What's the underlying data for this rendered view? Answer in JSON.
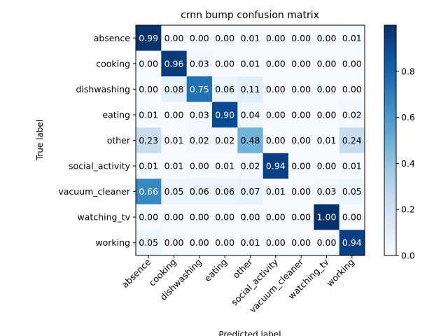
{
  "chart_data": {
    "type": "heatmap",
    "title": "crnn bump confusion matrix",
    "xlabel": "Predicted label",
    "ylabel": "True label",
    "labels": [
      "absence",
      "cooking",
      "dishwashing",
      "eating",
      "other",
      "social_activity",
      "vacuum_cleaner",
      "watching_tv",
      "working"
    ],
    "values": [
      [
        0.99,
        0.0,
        0.0,
        0.0,
        0.01,
        0.0,
        0.0,
        0.0,
        0.01
      ],
      [
        0.0,
        0.96,
        0.03,
        0.0,
        0.01,
        0.0,
        0.0,
        0.0,
        0.0
      ],
      [
        0.0,
        0.08,
        0.75,
        0.06,
        0.11,
        0.0,
        0.0,
        0.0,
        0.0
      ],
      [
        0.01,
        0.0,
        0.03,
        0.9,
        0.04,
        0.0,
        0.0,
        0.0,
        0.02
      ],
      [
        0.23,
        0.01,
        0.02,
        0.02,
        0.48,
        0.0,
        0.0,
        0.01,
        0.24
      ],
      [
        0.01,
        0.01,
        0.0,
        0.01,
        0.02,
        0.94,
        0.0,
        0.0,
        0.01
      ],
      [
        0.66,
        0.05,
        0.06,
        0.06,
        0.07,
        0.01,
        0.0,
        0.03,
        0.05
      ],
      [
        0.0,
        0.0,
        0.0,
        0.0,
        0.0,
        0.0,
        0.0,
        1.0,
        0.0
      ],
      [
        0.05,
        0.0,
        0.0,
        0.0,
        0.01,
        0.0,
        0.0,
        0.0,
        0.94
      ]
    ],
    "value_format": "2 decimals",
    "colormap": "Blues",
    "colormap_colors": [
      "#f7fbff",
      "#deebf7",
      "#c6dbef",
      "#9ecae1",
      "#6baed6",
      "#4292c6",
      "#2171b5",
      "#08519c",
      "#08306b"
    ],
    "colorbar": {
      "range": [
        0,
        1
      ],
      "ticks": [
        "0.0",
        "0.2",
        "0.4",
        "0.6",
        "0.8"
      ]
    },
    "text_color_dark": "#000000",
    "text_color_light": "#ffffff",
    "grid": false
  }
}
